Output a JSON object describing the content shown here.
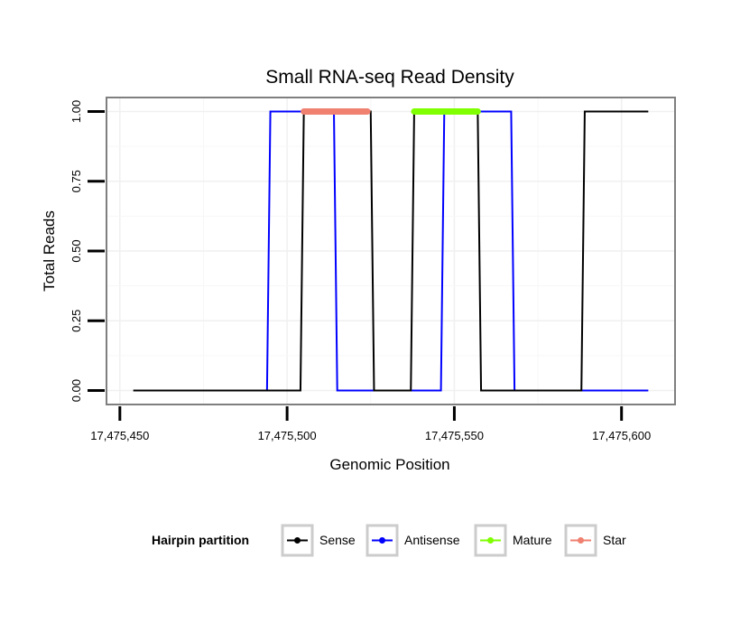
{
  "chart_data": {
    "type": "line",
    "title": "Small RNA-seq Read Density",
    "xlabel": "Genomic Position",
    "ylabel": "Total Reads",
    "xlim": [
      17475446,
      17475616
    ],
    "ylim": [
      -0.05,
      1.05
    ],
    "x_ticks": [
      17475450,
      17475500,
      17475550,
      17475600
    ],
    "x_tick_labels": [
      "17,475,450",
      "17,475,500",
      "17,475,550",
      "17,475,600"
    ],
    "y_ticks": [
      0,
      0.25,
      0.5,
      0.75,
      1
    ],
    "y_tick_labels": [
      "0.00",
      "0.25",
      "0.50",
      "0.75",
      "1.00"
    ],
    "grid": true,
    "legend_position": "bottom",
    "legend_title": "Hairpin partition",
    "series": [
      {
        "name": "Sense",
        "color": "#000000",
        "x": [
          17475454,
          17475504,
          17475505,
          17475525,
          17475526,
          17475537,
          17475538,
          17475557,
          17475558,
          17475588,
          17475589,
          17475608
        ],
        "y": [
          0,
          0,
          1,
          1,
          0,
          0,
          1,
          1,
          0,
          0,
          1,
          1
        ]
      },
      {
        "name": "Antisense",
        "color": "#0000ff",
        "x": [
          17475494,
          17475495,
          17475514,
          17475515,
          17475546,
          17475547,
          17475567,
          17475568,
          17475608
        ],
        "y": [
          0,
          1,
          1,
          0,
          0,
          1,
          1,
          0,
          0
        ]
      },
      {
        "name": "Mature",
        "color": "#7fff00",
        "x": [
          17475538,
          17475557
        ],
        "y": [
          1,
          1
        ]
      },
      {
        "name": "Star",
        "color": "#f08070",
        "x": [
          17475505,
          17475524
        ],
        "y": [
          1,
          1
        ]
      }
    ]
  }
}
